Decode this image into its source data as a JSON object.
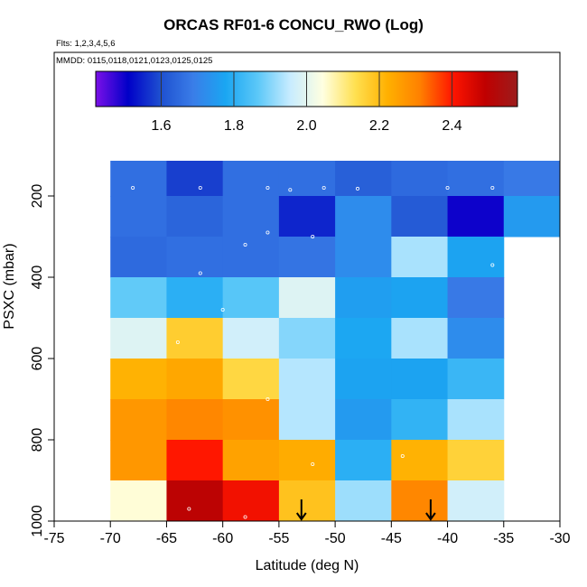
{
  "chart_data": {
    "type": "heatmap",
    "title": "ORCAS RF01-6 CONCU_RWO (Log)",
    "flights_label": "Flts: 1,2,3,4,5,6",
    "dates_label": "MMDD: 0115,0118,0121,0123,0125,0125",
    "xlabel": "Latitude (deg N)",
    "ylabel": "PSXC (mbar)",
    "xlim": [
      -75,
      -30
    ],
    "ylim": [
      1000,
      0
    ],
    "x_ticks": [
      -75,
      -70,
      -65,
      -60,
      -55,
      -50,
      -45,
      -40,
      -35,
      -30
    ],
    "x_tick_labels": [
      "-75",
      "-70",
      "-65",
      "-60",
      "-55",
      "-50",
      "-45",
      "-40",
      "-35",
      "-30"
    ],
    "y_ticks": [
      200,
      400,
      600,
      800,
      1000
    ],
    "y_tick_labels": [
      "200",
      "400",
      "600",
      "800",
      "1000"
    ],
    "colorbar": {
      "range": [
        1.42,
        2.58
      ],
      "ticks": [
        1.6,
        1.8,
        2.0,
        2.2,
        2.4
      ],
      "tick_labels": [
        "1.6",
        "1.8",
        "2.0",
        "2.2",
        "2.4"
      ],
      "colors": [
        "#7b10e8",
        "#0000c8",
        "#1e50d0",
        "#3a7de8",
        "#1aa6f2",
        "#5cc8f8",
        "#c8ecff",
        "#ffffe0",
        "#ffe050",
        "#ffb000",
        "#ff8000",
        "#ff1500",
        "#c00000",
        "#9b1c1c"
      ]
    },
    "x_bins": [
      -70,
      -65,
      -60,
      -55,
      -50,
      -45,
      -40,
      -35,
      -30
    ],
    "p_bins": [
      100,
      200,
      300,
      400,
      500,
      600,
      700,
      800,
      900,
      1000
    ],
    "values": [
      [
        1.66,
        1.58,
        1.66,
        1.66,
        1.63,
        1.65,
        1.66,
        1.68
      ],
      [
        1.66,
        1.64,
        1.66,
        1.55,
        1.72,
        1.62,
        1.5,
        1.75
      ],
      [
        1.65,
        1.66,
        1.66,
        1.67,
        1.72,
        1.93,
        1.77,
        null
      ],
      [
        1.87,
        1.8,
        1.86,
        1.99,
        1.76,
        1.77,
        1.68,
        null
      ],
      [
        1.99,
        2.17,
        1.97,
        1.9,
        1.78,
        1.93,
        1.72,
        null
      ],
      [
        2.22,
        2.24,
        2.15,
        1.94,
        1.77,
        1.77,
        1.82,
        null
      ],
      [
        2.27,
        2.3,
        2.28,
        1.94,
        1.75,
        1.81,
        1.93,
        null
      ],
      [
        2.27,
        2.4,
        2.25,
        2.23,
        1.8,
        2.22,
        2.16,
        null
      ],
      [
        2.05,
        2.5,
        2.42,
        2.19,
        1.92,
        2.3,
        1.97,
        null
      ]
    ],
    "flight_track": [
      [
        -68,
        180
      ],
      [
        -62,
        180
      ],
      [
        -56,
        180
      ],
      [
        -54,
        185
      ],
      [
        -51,
        180
      ],
      [
        -48,
        182
      ],
      [
        -40,
        180
      ],
      [
        -36,
        180
      ],
      [
        -56,
        290
      ],
      [
        -52,
        300
      ],
      [
        -58,
        320
      ],
      [
        -36,
        370
      ],
      [
        -62,
        390
      ],
      [
        -60,
        480
      ],
      [
        -64,
        560
      ],
      [
        -56,
        700
      ],
      [
        -63,
        970
      ],
      [
        -58,
        990
      ],
      [
        -52,
        860
      ],
      [
        -44,
        840
      ]
    ],
    "arrows": [
      {
        "lat": -53,
        "p": 1000
      },
      {
        "lat": -41.5,
        "p": 1000
      }
    ]
  }
}
